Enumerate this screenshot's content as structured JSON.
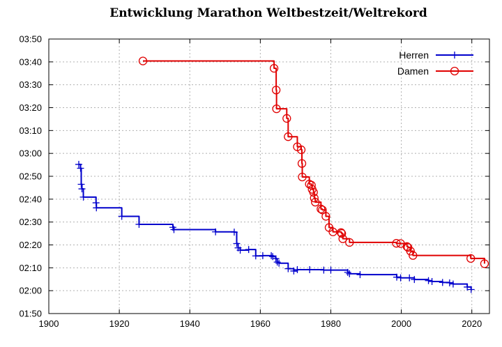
{
  "chart_data": {
    "type": "line",
    "title": "Entwicklung Marathon Weltbestzeit/Weltrekord",
    "xlabel": "",
    "ylabel": "",
    "xlim": [
      1900,
      2025
    ],
    "ylim_minutes": [
      110,
      230
    ],
    "x_ticks": [
      1900,
      1920,
      1940,
      1960,
      1980,
      2000,
      2020
    ],
    "y_ticks": [
      {
        "label": "01:50",
        "minutes": 110
      },
      {
        "label": "02:00",
        "minutes": 120
      },
      {
        "label": "02:10",
        "minutes": 130
      },
      {
        "label": "02:20",
        "minutes": 140
      },
      {
        "label": "02:30",
        "minutes": 150
      },
      {
        "label": "02:40",
        "minutes": 160
      },
      {
        "label": "02:50",
        "minutes": 170
      },
      {
        "label": "03:00",
        "minutes": 180
      },
      {
        "label": "03:10",
        "minutes": 190
      },
      {
        "label": "03:20",
        "minutes": 200
      },
      {
        "label": "03:30",
        "minutes": 210
      },
      {
        "label": "03:40",
        "minutes": 220
      },
      {
        "label": "03:50",
        "minutes": 230
      }
    ],
    "grid": true,
    "legend_position": "top-right",
    "series": [
      {
        "name": "Herren",
        "color": "#0000cc",
        "marker": "plus",
        "x": [
          1908.5,
          1909.0,
          1909.2,
          1909.4,
          1909.8,
          1913.4,
          1913.5,
          1920.7,
          1925.6,
          1935.2,
          1935.5,
          1947.3,
          1952.6,
          1953.3,
          1953.7,
          1954.3,
          1956.7,
          1958.7,
          1960.7,
          1963.1,
          1963.5,
          1964.4,
          1964.8,
          1965.3,
          1967.9,
          1969.5,
          1970.5,
          1974.0,
          1978.0,
          1980.0,
          1984.8,
          1985.3,
          1988.3,
          1998.7,
          1999.8,
          2002.3,
          2003.7,
          2007.7,
          2008.7,
          2011.7,
          2013.7,
          2014.7,
          2018.7,
          2019.8
        ],
        "y": [
          175.2,
          173.5,
          166.5,
          164.5,
          160.9,
          158.4,
          156.2,
          152.5,
          149.0,
          147.7,
          146.7,
          145.7,
          145.6,
          140.6,
          138.7,
          137.7,
          138.0,
          135.2,
          135.3,
          135.3,
          134.9,
          134.0,
          132.5,
          132.0,
          129.6,
          128.6,
          129.2,
          129.2,
          129.0,
          129.0,
          128.0,
          127.4,
          127.0,
          125.9,
          125.6,
          125.6,
          124.9,
          124.4,
          124.0,
          123.6,
          123.4,
          122.9,
          121.6,
          120.5
        ]
      },
      {
        "name": "Damen",
        "color": "#e00000",
        "marker": "circle",
        "x": [
          1926.7,
          1963.9,
          1964.5,
          1964.6,
          1967.5,
          1967.9,
          1970.5,
          1971.6,
          1971.8,
          1971.9,
          1973.9,
          1974.5,
          1974.7,
          1975.1,
          1975.3,
          1975.6,
          1977.2,
          1977.6,
          1978.6,
          1979.5,
          1980.6,
          1982.9,
          1983.1,
          1983.4,
          1985.3,
          1998.6,
          1999.8,
          2001.6,
          2001.9,
          2002.6,
          2003.3,
          2019.7,
          2023.6
        ],
        "y": [
          220.4,
          217.2,
          207.7,
          199.5,
          195.3,
          187.3,
          182.9,
          181.6,
          175.6,
          169.7,
          166.6,
          166.1,
          164.3,
          163.0,
          160.5,
          158.7,
          155.7,
          155.3,
          152.5,
          147.6,
          145.7,
          145.4,
          145.0,
          142.7,
          141.1,
          140.7,
          140.6,
          139.3,
          138.9,
          137.3,
          135.4,
          134.1,
          131.8
        ]
      }
    ]
  }
}
